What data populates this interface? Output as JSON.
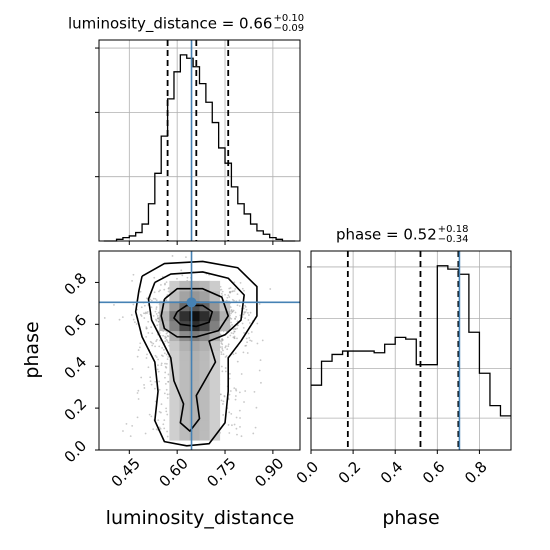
{
  "colors": {
    "truth": "#4682b4",
    "histogram": "#000000",
    "grid": "#b0b0b0",
    "quantile": "#000000",
    "scatter": "#9a9a9a"
  },
  "titles": {
    "lum": {
      "text": "luminosity_distance = 0.66",
      "plus": "+0.10",
      "minus": "−0.09"
    },
    "phase": {
      "text": "phase = 0.52",
      "plus": "+0.18",
      "minus": "−0.34"
    }
  },
  "chart_data": [
    {
      "type": "histogram",
      "panel": "luminosity_distance marginal",
      "xlim": [
        0.355,
        0.985
      ],
      "bin_edges": [
        0.37,
        0.39,
        0.41,
        0.43,
        0.45,
        0.47,
        0.49,
        0.51,
        0.53,
        0.55,
        0.57,
        0.59,
        0.61,
        0.63,
        0.65,
        0.67,
        0.69,
        0.71,
        0.73,
        0.75,
        0.77,
        0.79,
        0.81,
        0.83,
        0.85,
        0.87,
        0.89,
        0.91,
        0.93,
        0.95,
        0.97
      ],
      "counts": [
        0,
        0,
        1,
        2,
        3,
        5,
        10,
        22,
        40,
        62,
        84,
        100,
        110,
        108,
        103,
        93,
        82,
        70,
        55,
        46,
        32,
        22,
        16,
        10,
        6,
        4,
        2,
        1,
        0,
        0
      ],
      "quantiles": [
        0.57,
        0.66,
        0.76
      ],
      "truth": 0.645,
      "xticks": [
        0.45,
        0.6,
        0.75,
        0.9
      ]
    },
    {
      "type": "histogram",
      "panel": "phase marginal",
      "xlim": [
        0.0,
        0.95
      ],
      "xlabel": "phase",
      "bin_edges": [
        0.0,
        0.05,
        0.1,
        0.15,
        0.2,
        0.25,
        0.3,
        0.35,
        0.4,
        0.45,
        0.5,
        0.55,
        0.6,
        0.65,
        0.7,
        0.75,
        0.8,
        0.85,
        0.9,
        0.95
      ],
      "counts": [
        38,
        52,
        56,
        58,
        58,
        58,
        57,
        62,
        66,
        65,
        50,
        50,
        108,
        106,
        103,
        69,
        45,
        26,
        20
      ],
      "quantiles": [
        0.175,
        0.52,
        0.7
      ],
      "truth": 0.705,
      "xticks": [
        0.0,
        0.2,
        0.4,
        0.6,
        0.8
      ],
      "xticklabels": [
        "0.0",
        "0.2",
        "0.4",
        "0.6",
        "0.8"
      ]
    },
    {
      "type": "heatmap",
      "panel": "2D posterior (contours + scatter)",
      "x_label": "luminosity_distance",
      "y_label": "phase",
      "xlim": [
        0.355,
        0.985
      ],
      "ylim": [
        0.0,
        0.95
      ],
      "xticks": [
        0.45,
        0.6,
        0.75,
        0.9
      ],
      "xticklabels": [
        "0.45",
        "0.60",
        "0.75",
        "0.90"
      ],
      "yticks": [
        0.0,
        0.2,
        0.4,
        0.6,
        0.8
      ],
      "yticklabels": [
        "0.0",
        "0.2",
        "0.4",
        "0.6",
        "0.8"
      ],
      "truth": [
        0.645,
        0.705
      ],
      "contour_levels": 4,
      "grid": true
    }
  ]
}
